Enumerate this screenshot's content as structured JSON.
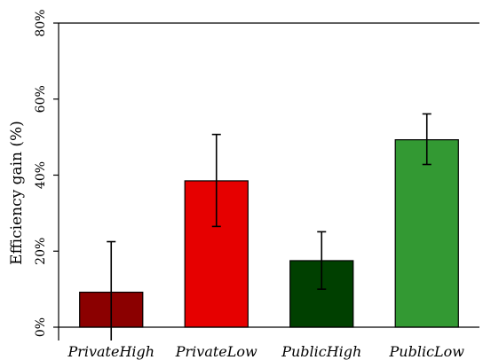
{
  "chart_data": {
    "type": "bar",
    "title": "",
    "xlabel": "",
    "ylabel": "Efficiency gain (%)",
    "ylim": [
      0,
      80
    ],
    "yticks": [
      0,
      20,
      40,
      60,
      80
    ],
    "ytick_labels": [
      "0%",
      "20%",
      "40%",
      "60%",
      "80%"
    ],
    "categories": [
      "PrivateHigh",
      "PrivateLow",
      "PublicHigh",
      "PublicLow"
    ],
    "values": [
      9.2,
      38.5,
      17.5,
      49.3
    ],
    "error_low": [
      -3.5,
      26.5,
      10.0,
      42.8
    ],
    "error_high": [
      22.5,
      50.7,
      25.1,
      56.1
    ],
    "colors": [
      "#8b0000",
      "#e60000",
      "#004000",
      "#339933"
    ],
    "grid": false
  }
}
